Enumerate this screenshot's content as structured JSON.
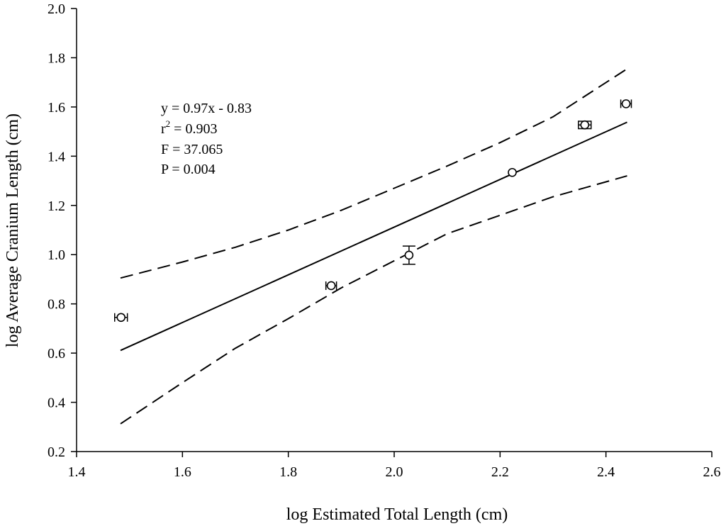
{
  "chart_data": {
    "type": "scatter",
    "xlabel": "log Estimated Total Length (cm)",
    "ylabel": "log Average Cranium Length (cm)",
    "xlim": [
      1.4,
      2.6
    ],
    "ylim": [
      0.2,
      2.0
    ],
    "xticks": [
      "1.4",
      "1.6",
      "1.8",
      "2.0",
      "2.2",
      "2.4",
      "2.6"
    ],
    "yticks": [
      "0.2",
      "0.4",
      "0.6",
      "0.8",
      "1.0",
      "1.2",
      "1.4",
      "1.6",
      "1.8",
      "2.0"
    ],
    "grid": false,
    "points": [
      {
        "x": 1.484,
        "y": 0.745,
        "xerr": 0.012,
        "yerr": 0
      },
      {
        "x": 1.881,
        "y": 0.874,
        "xerr": 0.01,
        "yerr": 0
      },
      {
        "x": 2.028,
        "y": 0.998,
        "yerr": 0.037,
        "xerr": 0
      },
      {
        "x": 2.223,
        "y": 1.334,
        "xerr": 0,
        "yerr": 0
      },
      {
        "x": 2.36,
        "y": 1.527,
        "xerr": 0.012,
        "yerr": 0.015
      },
      {
        "x": 2.438,
        "y": 1.613,
        "xerr": 0.01,
        "yerr": 0
      }
    ],
    "fit_line": {
      "x": [
        1.483,
        2.44
      ],
      "y": [
        0.611,
        1.538
      ]
    },
    "upper_ci": {
      "x": [
        1.483,
        1.6,
        1.7,
        1.8,
        1.9,
        2.0,
        2.1,
        2.2,
        2.3,
        2.44
      ],
      "y": [
        0.905,
        0.97,
        1.03,
        1.1,
        1.18,
        1.27,
        1.36,
        1.455,
        1.56,
        1.755
      ]
    },
    "lower_ci": {
      "x": [
        1.483,
        1.6,
        1.7,
        1.8,
        1.9,
        2.0,
        2.1,
        2.2,
        2.3,
        2.44
      ],
      "y": [
        0.313,
        0.48,
        0.62,
        0.74,
        0.865,
        0.975,
        1.085,
        1.16,
        1.235,
        1.32
      ]
    },
    "annotations": {
      "equation": "y = 0.97x - 0.83",
      "r2_prefix": "r",
      "r2_sup": "2",
      "r2_value": " = 0.903",
      "f_stat": "F = 37.065",
      "p_value": "P = 0.004"
    }
  }
}
